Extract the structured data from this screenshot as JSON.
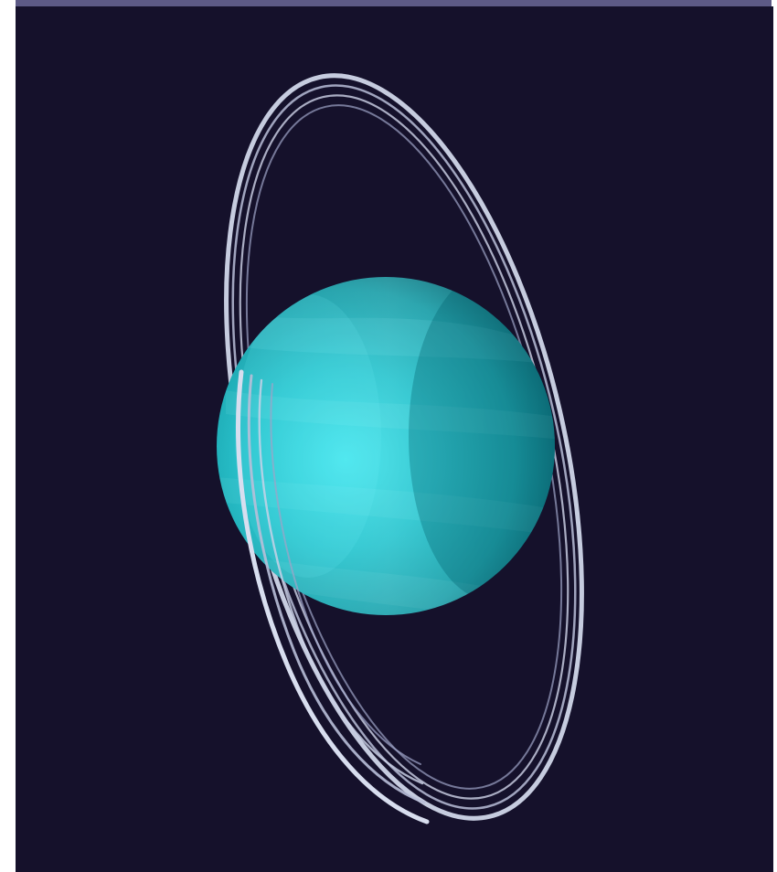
{
  "image": {
    "subject": "uranus-planet-icon",
    "colors": {
      "space": "#15112b",
      "border": "#5d5a86",
      "planet_light": "#39d6e0",
      "planet_mid": "#1fb4bf",
      "planet_dark": "#0e6f7d",
      "ring": "#d7dced"
    }
  }
}
